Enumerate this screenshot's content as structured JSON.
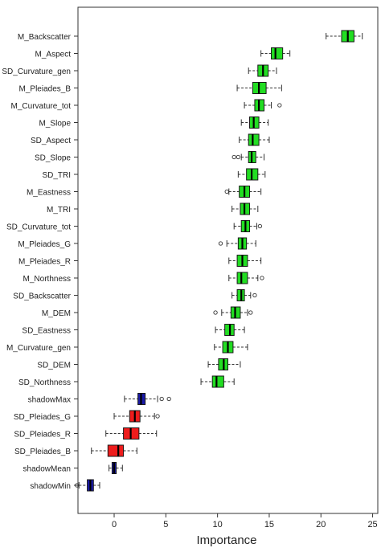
{
  "chart_data": {
    "type": "boxplot",
    "orientation": "horizontal",
    "title": "",
    "xlabel": "Importance",
    "ylabel": "",
    "xlim": [
      -3.5,
      25.5
    ],
    "xticks": [
      0,
      5,
      10,
      15,
      20,
      25
    ],
    "grid": false,
    "colors": {
      "confirmed": "#22dd22",
      "rejected": "#ee1c1c",
      "shadow": "#1a1aa8",
      "whisker": "#333333"
    },
    "series": [
      {
        "label": "M_Backscatter",
        "status": "confirmed",
        "min": 20.5,
        "q1": 22.0,
        "median": 22.6,
        "q3": 23.2,
        "max": 24.0,
        "outliers": []
      },
      {
        "label": "M_Aspect",
        "status": "confirmed",
        "min": 14.2,
        "q1": 15.2,
        "median": 15.6,
        "q3": 16.3,
        "max": 17.0,
        "outliers": []
      },
      {
        "label": "SD_Curvature_gen",
        "status": "confirmed",
        "min": 13.0,
        "q1": 13.9,
        "median": 14.4,
        "q3": 14.9,
        "max": 15.7,
        "outliers": []
      },
      {
        "label": "M_Pleiades_B",
        "status": "confirmed",
        "min": 11.9,
        "q1": 13.4,
        "median": 14.0,
        "q3": 14.7,
        "max": 16.2,
        "outliers": []
      },
      {
        "label": "M_Curvature_tot",
        "status": "confirmed",
        "min": 12.6,
        "q1": 13.6,
        "median": 14.0,
        "q3": 14.5,
        "max": 15.2,
        "outliers": [
          16.0
        ]
      },
      {
        "label": "M_Slope",
        "status": "confirmed",
        "min": 12.3,
        "q1": 13.1,
        "median": 13.5,
        "q3": 14.0,
        "max": 14.9,
        "outliers": []
      },
      {
        "label": "SD_Aspect",
        "status": "confirmed",
        "min": 12.1,
        "q1": 13.0,
        "median": 13.4,
        "q3": 14.0,
        "max": 15.0,
        "outliers": []
      },
      {
        "label": "SD_Slope",
        "status": "confirmed",
        "min": 12.3,
        "q1": 13.0,
        "median": 13.3,
        "q3": 13.7,
        "max": 14.5,
        "outliers": [
          11.6,
          12.0
        ]
      },
      {
        "label": "SD_TRI",
        "status": "confirmed",
        "min": 12.0,
        "q1": 12.8,
        "median": 13.3,
        "q3": 13.9,
        "max": 14.6,
        "outliers": []
      },
      {
        "label": "M_Eastness",
        "status": "confirmed",
        "min": 11.1,
        "q1": 12.1,
        "median": 12.6,
        "q3": 13.1,
        "max": 14.2,
        "outliers": [
          10.9
        ]
      },
      {
        "label": "M_TRI",
        "status": "confirmed",
        "min": 11.4,
        "q1": 12.2,
        "median": 12.6,
        "q3": 13.1,
        "max": 13.9,
        "outliers": []
      },
      {
        "label": "SD_Curvature_tot",
        "status": "confirmed",
        "min": 11.6,
        "q1": 12.3,
        "median": 12.7,
        "q3": 13.1,
        "max": 13.8,
        "outliers": [
          14.1
        ]
      },
      {
        "label": "M_Pleiades_G",
        "status": "confirmed",
        "min": 10.9,
        "q1": 12.0,
        "median": 12.4,
        "q3": 12.8,
        "max": 13.7,
        "outliers": [
          10.3
        ]
      },
      {
        "label": "M_Pleiades_R",
        "status": "confirmed",
        "min": 11.1,
        "q1": 11.9,
        "median": 12.4,
        "q3": 12.9,
        "max": 14.2,
        "outliers": []
      },
      {
        "label": "M_Northness",
        "status": "confirmed",
        "min": 11.1,
        "q1": 11.9,
        "median": 12.3,
        "q3": 12.9,
        "max": 13.9,
        "outliers": [
          14.3
        ]
      },
      {
        "label": "SD_Backscatter",
        "status": "confirmed",
        "min": 11.4,
        "q1": 11.9,
        "median": 12.3,
        "q3": 12.6,
        "max": 13.2,
        "outliers": [
          13.6
        ]
      },
      {
        "label": "M_DEM",
        "status": "confirmed",
        "min": 10.4,
        "q1": 11.3,
        "median": 11.7,
        "q3": 12.2,
        "max": 12.9,
        "outliers": [
          9.8,
          13.2
        ]
      },
      {
        "label": "SD_Eastness",
        "status": "confirmed",
        "min": 9.8,
        "q1": 10.7,
        "median": 11.2,
        "q3": 11.6,
        "max": 12.6,
        "outliers": []
      },
      {
        "label": "M_Curvature_gen",
        "status": "confirmed",
        "min": 9.7,
        "q1": 10.5,
        "median": 11.0,
        "q3": 11.5,
        "max": 12.9,
        "outliers": []
      },
      {
        "label": "SD_DEM",
        "status": "confirmed",
        "min": 9.1,
        "q1": 10.1,
        "median": 10.6,
        "q3": 11.0,
        "max": 12.2,
        "outliers": []
      },
      {
        "label": "SD_Northness",
        "status": "confirmed",
        "min": 8.4,
        "q1": 9.5,
        "median": 9.9,
        "q3": 10.6,
        "max": 11.6,
        "outliers": []
      },
      {
        "label": "shadowMax",
        "status": "shadow",
        "min": 1.0,
        "q1": 2.3,
        "median": 2.6,
        "q3": 3.0,
        "max": 4.2,
        "outliers": [
          4.6,
          5.3
        ]
      },
      {
        "label": "SD_Pleiades_G",
        "status": "rejected",
        "min": 0.0,
        "q1": 1.5,
        "median": 2.0,
        "q3": 2.5,
        "max": 3.9,
        "outliers": [
          4.2
        ]
      },
      {
        "label": "SD_Pleiades_R",
        "status": "rejected",
        "min": -0.8,
        "q1": 0.9,
        "median": 1.6,
        "q3": 2.4,
        "max": 4.1,
        "outliers": []
      },
      {
        "label": "SD_Pleiades_B",
        "status": "rejected",
        "min": -2.2,
        "q1": -0.6,
        "median": 0.4,
        "q3": 0.9,
        "max": 2.2,
        "outliers": []
      },
      {
        "label": "shadowMean",
        "status": "shadow",
        "min": -0.5,
        "q1": -0.2,
        "median": 0.0,
        "q3": 0.2,
        "max": 0.8,
        "outliers": []
      },
      {
        "label": "shadowMin",
        "status": "shadow",
        "min": -3.4,
        "q1": -2.6,
        "median": -2.3,
        "q3": -2.0,
        "max": -1.4,
        "outliers": [
          -3.6
        ]
      }
    ]
  }
}
